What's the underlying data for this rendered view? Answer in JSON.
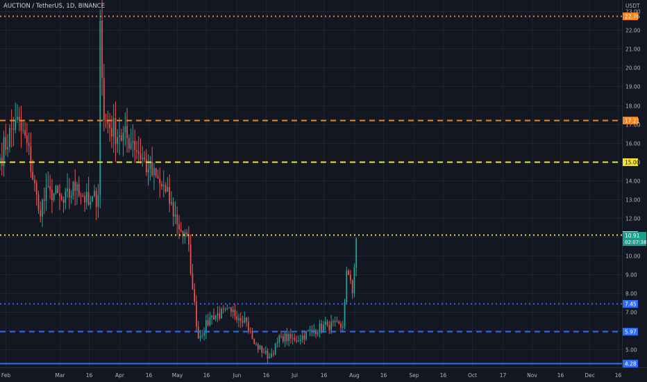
{
  "header": {
    "symbol": "AUCTION / TetherUS, 1D, BINANCE",
    "currency": "USDT"
  },
  "colors": {
    "background": "#131722",
    "grid": "#1f2433",
    "up": "#26a69a",
    "down": "#ef5350",
    "axis_text": "#b2b5be"
  },
  "chart_data": {
    "type": "candlestick",
    "ylim": [
      4.05,
      23.6
    ],
    "x_range": [
      "2022-01-29",
      "2022-12-18"
    ],
    "x_tick_labels": [
      {
        "date": "2022-02-01",
        "label": "Feb"
      },
      {
        "date": "2022-03-01",
        "label": "Mar"
      },
      {
        "date": "2022-03-16",
        "label": "16"
      },
      {
        "date": "2022-04-01",
        "label": "Apr"
      },
      {
        "date": "2022-04-16",
        "label": "16"
      },
      {
        "date": "2022-05-01",
        "label": "May"
      },
      {
        "date": "2022-05-16",
        "label": "16"
      },
      {
        "date": "2022-06-01",
        "label": "Jun"
      },
      {
        "date": "2022-06-16",
        "label": "16"
      },
      {
        "date": "2022-07-01",
        "label": "Jul"
      },
      {
        "date": "2022-07-16",
        "label": "16"
      },
      {
        "date": "2022-08-01",
        "label": "Aug"
      },
      {
        "date": "2022-08-16",
        "label": "16"
      },
      {
        "date": "2022-09-01",
        "label": "Sep"
      },
      {
        "date": "2022-09-16",
        "label": "16"
      },
      {
        "date": "2022-10-01",
        "label": "Oct"
      },
      {
        "date": "2022-10-17",
        "label": "17"
      },
      {
        "date": "2022-11-01",
        "label": "Nov"
      },
      {
        "date": "2022-11-16",
        "label": "16"
      },
      {
        "date": "2022-12-01",
        "label": "Dec"
      },
      {
        "date": "2022-12-16",
        "label": "16"
      }
    ],
    "y_ticks": [
      5,
      6,
      7,
      8,
      9,
      10,
      11,
      12,
      13,
      14,
      15,
      16,
      17,
      18,
      19,
      20,
      21,
      22,
      23
    ],
    "y_tick_labels": [
      "5.00",
      "6.00",
      "7.00",
      "8.00",
      "9.00",
      "10.00",
      "11.00",
      "12.00",
      "13.00",
      "14.00",
      "15.00",
      "16.00",
      "17.00",
      "18.00",
      "19.00",
      "20.00",
      "21.00",
      "22.00",
      "23.00"
    ],
    "waypoints": [
      [
        "2022-01-29",
        15.2
      ],
      [
        "2022-02-06",
        17.2
      ],
      [
        "2022-02-12",
        16.0
      ],
      [
        "2022-02-18",
        12.4
      ],
      [
        "2022-02-24",
        13.5
      ],
      [
        "2022-03-03",
        12.8
      ],
      [
        "2022-03-10",
        13.8
      ],
      [
        "2022-03-16",
        12.7
      ],
      [
        "2022-03-21",
        13.2
      ],
      [
        "2022-03-22",
        22.5
      ],
      [
        "2022-03-24",
        17.2
      ],
      [
        "2022-04-01",
        16.4
      ],
      [
        "2022-04-08",
        16.1
      ],
      [
        "2022-04-16",
        14.6
      ],
      [
        "2022-04-25",
        13.4
      ],
      [
        "2022-05-03",
        11.3
      ],
      [
        "2022-05-07",
        10.6
      ],
      [
        "2022-05-09",
        8.2
      ],
      [
        "2022-05-12",
        5.6
      ],
      [
        "2022-05-19",
        6.8
      ],
      [
        "2022-05-29",
        7.0
      ],
      [
        "2022-06-05",
        6.7
      ],
      [
        "2022-06-10",
        5.3
      ],
      [
        "2022-06-18",
        4.6
      ],
      [
        "2022-06-24",
        5.7
      ],
      [
        "2022-07-01",
        5.5
      ],
      [
        "2022-07-10",
        6.0
      ],
      [
        "2022-07-18",
        6.3
      ],
      [
        "2022-07-26",
        6.2
      ],
      [
        "2022-07-28",
        9.2
      ],
      [
        "2022-07-31",
        8.0
      ],
      [
        "2022-08-02",
        10.91
      ]
    ],
    "last_value": 10.91,
    "levels": [
      {
        "value": 22.76,
        "label": "22.76",
        "color": "#f5841f",
        "style": "dotted",
        "text_color": "#ffffff"
      },
      {
        "value": 17.21,
        "label": "17.21",
        "color": "#f5841f",
        "style": "dashed",
        "text_color": "#ffffff"
      },
      {
        "value": 15.0,
        "label": "15.00",
        "color": "#f5e12f",
        "style": "dashed",
        "text_color": "#131722"
      },
      {
        "value": 11.1,
        "label": "11.10",
        "color": "#f5e12f",
        "style": "dotted",
        "text_color": "#131722"
      },
      {
        "value": 7.45,
        "label": "7.45",
        "color": "#2f6cf5",
        "style": "dotted",
        "text_color": "#ffffff"
      },
      {
        "value": 5.97,
        "label": "5.97",
        "color": "#2f6cf5",
        "style": "dashed",
        "text_color": "#ffffff"
      },
      {
        "value": 4.28,
        "label": "4.28",
        "color": "#2f6cf5",
        "style": "solid",
        "text_color": "#ffffff"
      }
    ],
    "price_tag": {
      "value": 10.91,
      "label": "10.91",
      "countdown": "02:07:38",
      "color": "#1e9e8e"
    }
  }
}
